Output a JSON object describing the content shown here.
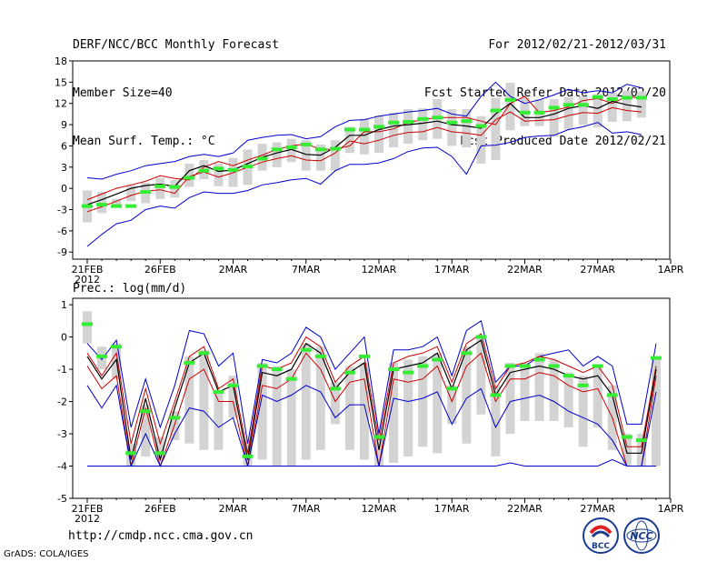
{
  "header": {
    "title": "DERF/NCC/BCC Monthly Forecast",
    "member_size": "Member Size=40",
    "variable": "Mean Surf. Temp.: °C",
    "period": "For 2012/02/21-2012/03/31",
    "started": "Fcst Started Refer Date 2012/02/20",
    "produced": "Fcst Produced Date 2012/02/21"
  },
  "precip_label": "Prec.: log(mm/d)",
  "footer": {
    "url": "http://cmdp.ncc.cma.gov.cn",
    "grads": "GrADS: COLA/IGES",
    "logo_left": "BCC",
    "logo_right": "NCC"
  },
  "colors": {
    "max": "#0000cc",
    "ensemble_band": "#cc0000",
    "mean": "#000000",
    "observed": "#33ee33",
    "range_bar": "#d3d3d3"
  },
  "chart_data": [
    {
      "type": "line",
      "title": "Mean Surf. Temp.: °C",
      "x_start": "21FEB",
      "x_tick_labels": [
        "21FEB",
        "26FEB",
        "2MAR",
        "7MAR",
        "12MAR",
        "17MAR",
        "22MAR",
        "27MAR",
        "1APR"
      ],
      "x_year": "2012",
      "ylim": [
        -10,
        18
      ],
      "y_ticks": [
        -9,
        -6,
        -3,
        0,
        3,
        6,
        9,
        12,
        15,
        18
      ],
      "series": [
        {
          "name": "max",
          "values": [
            1.5,
            1.3,
            2,
            2.5,
            3.2,
            3.5,
            3.8,
            4.5,
            4.8,
            4.5,
            5,
            6.8,
            7.2,
            7.5,
            7.6,
            7,
            7.3,
            8.7,
            9.6,
            9.7,
            10.2,
            10.5,
            10.8,
            11,
            11.3,
            10.5,
            10.2,
            13,
            15,
            13,
            12,
            12.5,
            13.2,
            14,
            13.5,
            13.8,
            13.5,
            14.7,
            14.2
          ]
        },
        {
          "name": "upper",
          "values": [
            -1.6,
            -0.8,
            0,
            0.5,
            1,
            1.8,
            1.4,
            1.2,
            3,
            3.8,
            3.2,
            4,
            4.7,
            5.5,
            6,
            6.3,
            5.5,
            5.5,
            6,
            8,
            8,
            8.4,
            9.3,
            9.7,
            10,
            10,
            10,
            9.5,
            9,
            12,
            13,
            10.7,
            11,
            11.5,
            12.4,
            12.7,
            12,
            13,
            12.7
          ]
        },
        {
          "name": "mean",
          "values": [
            -2.3,
            -1.6,
            -0.8,
            0,
            0.4,
            0.6,
            0.3,
            2.5,
            3.2,
            2.4,
            2.6,
            3.5,
            4.4,
            5,
            5.5,
            4.8,
            4.7,
            5.8,
            7.5,
            7.5,
            8.3,
            8.8,
            9,
            9.2,
            9.5,
            9,
            8.8,
            8.5,
            10.5,
            12,
            10,
            10,
            10.5,
            11.3,
            11.7,
            11.3,
            12.3,
            11.8,
            11.5
          ]
        },
        {
          "name": "lower",
          "values": [
            -3.3,
            -2.6,
            -1.8,
            -1,
            -0.4,
            -0.2,
            -0.7,
            1.7,
            2.3,
            1.6,
            2.2,
            3,
            3.7,
            4.2,
            4.6,
            4,
            3.9,
            5,
            6.7,
            6.3,
            6.8,
            7.5,
            7.9,
            8,
            8.6,
            8,
            7.8,
            7.5,
            9.7,
            10.8,
            9.5,
            9.6,
            9.7,
            10.3,
            10.7,
            10.6,
            11.4,
            11,
            10.8
          ]
        },
        {
          "name": "min",
          "values": [
            -8.2,
            -6.5,
            -5,
            -4.5,
            -3,
            -2.5,
            -2.8,
            -1.3,
            -0.5,
            -0.7,
            -0.7,
            -0.3,
            0.5,
            0.8,
            1.2,
            1.4,
            0.6,
            2.5,
            3.4,
            3.4,
            3.6,
            4.2,
            5.2,
            5.7,
            5.8,
            4.5,
            2,
            6,
            6.1,
            6.5,
            7.2,
            7.4,
            7.5,
            8.3,
            8.7,
            9.3,
            7.8,
            8,
            7.6
          ]
        },
        {
          "name": "observed",
          "values": [
            -2.5,
            -2.3,
            -2.5,
            -2.5,
            -0.5,
            0.3,
            0.2,
            1.5,
            2.5,
            2.8,
            2.6,
            3.1,
            4.2,
            5.5,
            5.8,
            6.2,
            5.5,
            5.6,
            8.3,
            8.3,
            8.7,
            9.3,
            9.4,
            9.8,
            10,
            9.3,
            9.5,
            8.8,
            11,
            12.5,
            10.7,
            10.7,
            11.4,
            11.8,
            11.8,
            12.9,
            12.6,
            12.8,
            12.8
          ]
        }
      ],
      "range_bars": [
        [
          -4.8,
          -0.3
        ],
        [
          -3.5,
          -0.5
        ],
        [
          -2.6,
          -1.5
        ],
        [
          -1.8,
          0.5
        ],
        [
          -2.1,
          0.8
        ],
        [
          -1.5,
          1.5
        ],
        [
          -1.3,
          1.2
        ],
        [
          0.2,
          3.5
        ],
        [
          1.3,
          4
        ],
        [
          0.3,
          3.5
        ],
        [
          0.2,
          4.3
        ],
        [
          0.5,
          5.5
        ],
        [
          2.5,
          6.3
        ],
        [
          3,
          6.5
        ],
        [
          3.7,
          7
        ],
        [
          2.5,
          6.8
        ],
        [
          2.5,
          6.2
        ],
        [
          2.5,
          6.8
        ],
        [
          5,
          8.7
        ],
        [
          4.8,
          9.8
        ],
        [
          5,
          10.3
        ],
        [
          5.8,
          10.7
        ],
        [
          6.3,
          11.2
        ],
        [
          6.8,
          11.3
        ],
        [
          7,
          12.6
        ],
        [
          6,
          11.2
        ],
        [
          5.8,
          11.2
        ],
        [
          3.5,
          10.2
        ],
        [
          4,
          12.8
        ],
        [
          8.2,
          14.9
        ],
        [
          8.8,
          12.8
        ],
        [
          8.8,
          12.6
        ],
        [
          7.3,
          12.6
        ],
        [
          8.3,
          12.9
        ],
        [
          9,
          13
        ],
        [
          8.6,
          13.3
        ],
        [
          9.4,
          13.5
        ],
        [
          9.5,
          13.8
        ],
        [
          10,
          13.7
        ]
      ]
    },
    {
      "type": "line",
      "title": "Prec.: log(mm/d)",
      "x_start": "21FEB",
      "x_tick_labels": [
        "21FEB",
        "26FEB",
        "2MAR",
        "7MAR",
        "12MAR",
        "17MAR",
        "22MAR",
        "27MAR",
        "1APR"
      ],
      "x_year": "2012",
      "ylim": [
        -5,
        1.2
      ],
      "y_ticks": [
        -5,
        -4,
        -3,
        -2,
        -1,
        0,
        1
      ],
      "series": [
        {
          "name": "max",
          "values": [
            -0.2,
            -0.7,
            -0.1,
            -2.8,
            -1.3,
            -2.8,
            -1.5,
            0.2,
            0.1,
            -0.9,
            -0.5,
            -3.3,
            -0.7,
            -0.8,
            -0.5,
            0.3,
            0,
            -1,
            -0.5,
            0,
            -3,
            -0.4,
            -0.4,
            -0.3,
            0,
            -1.2,
            0.2,
            0.5,
            -1.4,
            -0.9,
            -0.9,
            -0.6,
            -0.5,
            -0.4,
            -0.9,
            -0.6,
            -0.9,
            -2.7,
            -2.7,
            -0.2
          ]
        },
        {
          "name": "upper",
          "values": [
            -0.5,
            -1.2,
            -0.5,
            -3.3,
            -1.6,
            -3.3,
            -2,
            -0.6,
            -0.3,
            -1.6,
            -1.3,
            -3.6,
            -0.9,
            -1,
            -0.8,
            0,
            -0.3,
            -1.4,
            -0.9,
            -0.6,
            -3.2,
            -0.8,
            -0.6,
            -0.5,
            -0.3,
            -1.4,
            -0.2,
            0.1,
            -1.6,
            -0.9,
            -0.8,
            -0.6,
            -0.7,
            -0.9,
            -1.1,
            -0.9,
            -1.5,
            -3.4,
            -3.4,
            -0.9
          ]
        },
        {
          "name": "mean",
          "values": [
            -0.6,
            -1.3,
            -0.7,
            -3.8,
            -1.9,
            -3.8,
            -2.2,
            -0.8,
            -0.5,
            -1.7,
            -1.5,
            -3.8,
            -1.1,
            -1.2,
            -1,
            -0.2,
            -0.5,
            -1.6,
            -1.1,
            -0.8,
            -3.5,
            -1,
            -0.9,
            -0.8,
            -0.5,
            -1.6,
            -0.4,
            -0.1,
            -1.8,
            -1.1,
            -1,
            -0.9,
            -1,
            -1.2,
            -1.3,
            -1.2,
            -1.8,
            -3.6,
            -3.6,
            -1
          ]
        },
        {
          "name": "lower",
          "values": [
            -0.9,
            -1.6,
            -1.2,
            -4,
            -2.2,
            -4,
            -2.7,
            -1.3,
            -1,
            -2,
            -2,
            -4,
            -1.5,
            -1.6,
            -1.3,
            -0.5,
            -1,
            -2,
            -1.4,
            -1.3,
            -4,
            -1.3,
            -1.4,
            -1.3,
            -0.9,
            -2,
            -0.9,
            -0.5,
            -2,
            -1.3,
            -1.3,
            -1.1,
            -1.2,
            -1.5,
            -1.7,
            -1.6,
            -2.5,
            -4,
            -4,
            -1.2
          ]
        },
        {
          "name": "min",
          "values": [
            -1.5,
            -2.2,
            -1.5,
            -4,
            -3,
            -4,
            -3,
            -2.2,
            -2.3,
            -2.8,
            -2.5,
            -4,
            -1.8,
            -2,
            -1.8,
            -1.5,
            -1.7,
            -2.5,
            -2.1,
            -2.1,
            -4,
            -1.9,
            -2,
            -1.9,
            -1.7,
            -2.7,
            -1.9,
            -1.6,
            -2.8,
            -2,
            -1.9,
            -1.8,
            -2,
            -2.3,
            -2.5,
            -2.7,
            -3.2,
            -4,
            -4,
            -1.7
          ]
        },
        {
          "name": "min_floor",
          "values": [
            -4,
            -4,
            -4,
            -4,
            -4,
            -4,
            -4,
            -4,
            -4,
            -4,
            -4,
            -4,
            -4,
            -4,
            -4,
            -4,
            -4,
            -4,
            -4,
            -4,
            -4,
            -4,
            -4,
            -4,
            -4,
            -4,
            -4,
            -4,
            -4,
            -3.9,
            -4,
            -4,
            -4,
            -4,
            -4,
            -4,
            -3.8,
            -4,
            -4,
            -4
          ]
        },
        {
          "name": "observed",
          "values": [
            0.4,
            -0.6,
            -0.3,
            -3.6,
            -2.3,
            -3.6,
            -2.5,
            -0.8,
            -0.5,
            -1.7,
            -1.5,
            -3.7,
            -0.9,
            -1,
            -1.3,
            -0.4,
            -0.6,
            -1.6,
            -1.1,
            -0.6,
            -3.1,
            -1,
            -1.1,
            -0.9,
            -0.7,
            -1.6,
            -0.5,
            0,
            -1.8,
            -0.9,
            -0.9,
            -0.7,
            -0.9,
            -1.2,
            -1.5,
            -0.9,
            -1.8,
            -3.1,
            -3.2,
            -0.65
          ]
        }
      ],
      "range_bars": [
        [
          -0.2,
          0.8
        ],
        [
          -1,
          -0.3
        ],
        [
          -1.3,
          -0.2
        ],
        [
          -4,
          -3.3
        ],
        [
          -3.7,
          -2.1
        ],
        [
          -3.8,
          -3.1
        ],
        [
          -3.2,
          -2.3
        ],
        [
          -3.3,
          -0.6
        ],
        [
          -3.5,
          -0.4
        ],
        [
          -3.5,
          -1.7
        ],
        [
          -2.5,
          -1.2
        ],
        [
          -4,
          -3.2
        ],
        [
          -3.8,
          -0.8
        ],
        [
          -4,
          -0.9
        ],
        [
          -4,
          -1
        ],
        [
          -3.8,
          -0.2
        ],
        [
          -3.5,
          -0.3
        ],
        [
          -2.7,
          -1.4
        ],
        [
          -3.5,
          -0.9
        ],
        [
          -3.8,
          -0.8
        ],
        [
          -4,
          -3
        ],
        [
          -3.9,
          -0.8
        ],
        [
          -3.7,
          -0.7
        ],
        [
          -3.4,
          -0.6
        ],
        [
          -3.6,
          -0.5
        ],
        [
          -2.7,
          -1.5
        ],
        [
          -3.3,
          -0.3
        ],
        [
          -2.4,
          0
        ],
        [
          -3.7,
          -1.5
        ],
        [
          -3,
          -0.8
        ],
        [
          -2.6,
          -0.8
        ],
        [
          -2.6,
          -0.5
        ],
        [
          -2.6,
          -0.7
        ],
        [
          -2.8,
          -1.1
        ],
        [
          -3.4,
          -1.2
        ],
        [
          -2.8,
          -0.9
        ],
        [
          -3.5,
          -1.5
        ],
        [
          -4,
          -3
        ],
        [
          -4,
          -3
        ],
        [
          -4,
          -0.6
        ]
      ]
    }
  ]
}
